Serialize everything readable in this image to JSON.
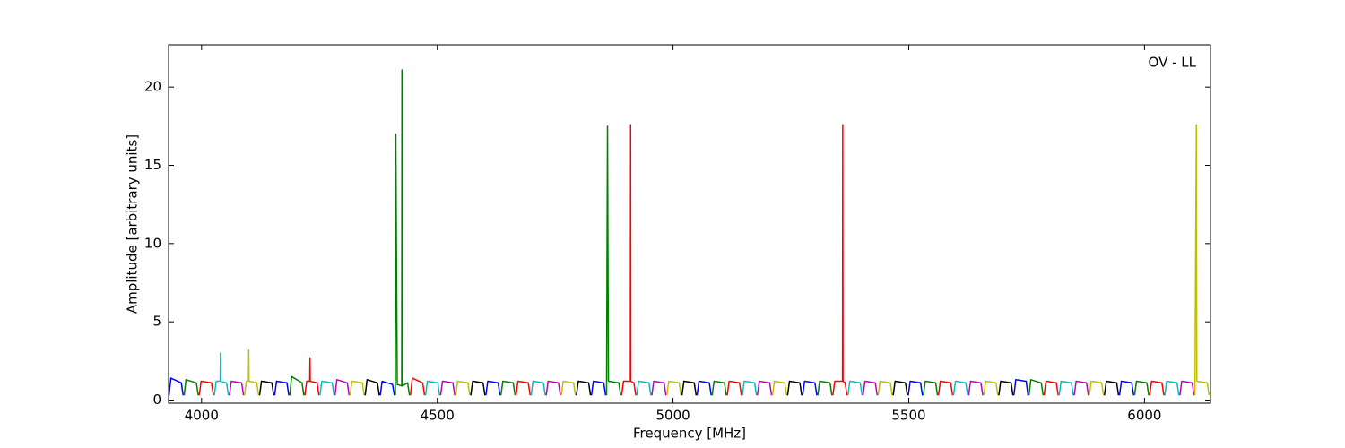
{
  "chart_data": {
    "type": "line",
    "annotation": "OV - LL",
    "xlabel": "Frequency [MHz]",
    "ylabel": "Amplitude [arbitrary units]",
    "xlim": [
      3930,
      6140
    ],
    "ylim": [
      -0.2,
      22.7
    ],
    "xticks": [
      4000,
      4500,
      5000,
      5500,
      6000
    ],
    "yticks": [
      0,
      5,
      10,
      15,
      20
    ],
    "grid": false,
    "series": [
      {
        "color": "#0000ff",
        "x": [
          3931,
          3935,
          3957,
          3961,
          3962,
          4155,
          4159,
          4181,
          4185,
          4186,
          4379,
          4383,
          4405,
          4409,
          4410,
          4603,
          4607,
          4629,
          4633,
          4634,
          4827,
          4831,
          4853,
          4857,
          4858,
          5051,
          5055,
          5077,
          5081,
          5082,
          5275,
          5279,
          5301,
          5305,
          5306,
          5499,
          5503,
          5525,
          5529,
          5530,
          5723,
          5727,
          5749,
          5753,
          5754,
          5947,
          5951,
          5973,
          5977
        ],
        "values": [
          0.3,
          1.4,
          1.1,
          0.3,
          null,
          0.3,
          1.2,
          1.1,
          0.3,
          null,
          0.3,
          1.2,
          1.0,
          0.3,
          null,
          0.3,
          1.2,
          1.1,
          0.3,
          null,
          0.3,
          1.2,
          1.1,
          0.3,
          null,
          0.3,
          1.2,
          1.1,
          0.3,
          null,
          0.3,
          1.2,
          1.1,
          0.3,
          null,
          0.3,
          1.2,
          1.1,
          0.3,
          null,
          0.3,
          1.3,
          1.2,
          0.3,
          null,
          0.3,
          1.2,
          1.1,
          0.3
        ]
      },
      {
        "color": "#008000",
        "x": [
          3963,
          3967,
          3989,
          3993,
          3994,
          4187,
          4191,
          4213,
          4217,
          4218,
          4411,
          4412,
          4415,
          4424.5,
          4425,
          4425.5,
          4437,
          4441,
          4442,
          4635,
          4639,
          4661,
          4665,
          4666,
          4859,
          4861,
          4863,
          4885,
          4889,
          4890,
          5083,
          5087,
          5109,
          5113,
          5114,
          5307,
          5311,
          5333,
          5337,
          5338,
          5531,
          5535,
          5557,
          5561,
          5562,
          5755,
          5759,
          5781,
          5785,
          5786,
          5979,
          5983,
          6005,
          6009
        ],
        "values": [
          0.3,
          1.3,
          1.1,
          0.3,
          null,
          0.3,
          1.5,
          1.1,
          0.3,
          null,
          0.3,
          17,
          1.0,
          0.9,
          21.1,
          0.9,
          1.1,
          0.3,
          null,
          0.3,
          1.2,
          1.1,
          0.3,
          null,
          0.3,
          17.5,
          1.2,
          1.1,
          0.3,
          null,
          0.3,
          1.2,
          1.1,
          0.3,
          null,
          0.3,
          1.2,
          1.1,
          0.3,
          null,
          0.3,
          1.2,
          1.1,
          0.3,
          null,
          0.3,
          1.3,
          1.1,
          0.3,
          null,
          0.3,
          1.2,
          1.1,
          0.3
        ]
      },
      {
        "color": "#ff0000",
        "x": [
          3995,
          3999,
          4021,
          4025,
          4026,
          4219,
          4223,
          4229.5,
          4230,
          4230.5,
          4245,
          4249,
          4250,
          4443,
          4447,
          4469,
          4473,
          4474,
          4667,
          4671,
          4693,
          4697,
          4698,
          4891,
          4895,
          4909.5,
          4910,
          4910.5,
          4917,
          4921,
          4922,
          5115,
          5119,
          5141,
          5145,
          5146,
          5339,
          5343,
          5359.5,
          5360,
          5360.5,
          5365,
          5369,
          5370,
          5563,
          5567,
          5589,
          5593,
          5594,
          5787,
          5791,
          5813,
          5817,
          5818,
          6011,
          6015,
          6037,
          6041
        ],
        "values": [
          0.3,
          1.2,
          1.1,
          0.3,
          null,
          0.3,
          1.2,
          1.2,
          2.7,
          1.2,
          1.1,
          0.3,
          null,
          0.3,
          1.4,
          1.1,
          0.3,
          null,
          0.3,
          1.2,
          1.1,
          0.3,
          null,
          0.3,
          1.2,
          1.2,
          17.6,
          1.2,
          1.1,
          0.3,
          null,
          0.3,
          1.2,
          1.1,
          0.3,
          null,
          0.3,
          1.2,
          1.2,
          17.6,
          1.2,
          1.1,
          0.3,
          null,
          0.3,
          1.2,
          1.1,
          0.3,
          null,
          0.3,
          1.2,
          1.1,
          0.3,
          null,
          0.3,
          1.2,
          1.1,
          0.3
        ]
      },
      {
        "color": "#00bfbf",
        "x": [
          4027,
          4031,
          4039.5,
          4040,
          4040.5,
          4053,
          4057,
          4058,
          4251,
          4255,
          4277,
          4281,
          4282,
          4475,
          4479,
          4501,
          4505,
          4506,
          4699,
          4703,
          4725,
          4729,
          4730,
          4923,
          4927,
          4949,
          4953,
          4954,
          5147,
          5151,
          5173,
          5177,
          5178,
          5371,
          5375,
          5397,
          5401,
          5402,
          5595,
          5599,
          5621,
          5625,
          5626,
          5819,
          5823,
          5845,
          5849,
          5850,
          6043,
          6047,
          6069,
          6073
        ],
        "values": [
          0.3,
          1.2,
          1.2,
          3.0,
          1.2,
          1.1,
          0.3,
          null,
          0.3,
          1.2,
          1.1,
          0.3,
          null,
          0.3,
          1.2,
          1.1,
          0.3,
          null,
          0.3,
          1.2,
          1.1,
          0.3,
          null,
          0.3,
          1.2,
          1.1,
          0.3,
          null,
          0.3,
          1.2,
          1.1,
          0.3,
          null,
          0.3,
          1.2,
          1.1,
          0.3,
          null,
          0.3,
          1.2,
          1.1,
          0.3,
          null,
          0.3,
          1.2,
          1.1,
          0.3,
          null,
          0.3,
          1.2,
          1.1,
          0.3
        ]
      },
      {
        "color": "#bf00bf",
        "x": [
          4059,
          4063,
          4085,
          4089,
          4090,
          4283,
          4287,
          4309,
          4313,
          4314,
          4507,
          4511,
          4533,
          4537,
          4538,
          4731,
          4735,
          4757,
          4761,
          4762,
          4955,
          4959,
          4981,
          4985,
          4986,
          5179,
          5183,
          5205,
          5209,
          5210,
          5403,
          5407,
          5429,
          5433,
          5434,
          5627,
          5631,
          5653,
          5657,
          5658,
          5851,
          5855,
          5877,
          5881,
          5882,
          6075,
          6079,
          6101,
          6105
        ],
        "values": [
          0.3,
          1.2,
          1.1,
          0.3,
          null,
          0.3,
          1.3,
          1.1,
          0.3,
          null,
          0.3,
          1.2,
          1.1,
          0.3,
          null,
          0.3,
          1.2,
          1.1,
          0.3,
          null,
          0.3,
          1.2,
          1.1,
          0.3,
          null,
          0.3,
          1.2,
          1.1,
          0.3,
          null,
          0.3,
          1.2,
          1.1,
          0.3,
          null,
          0.3,
          1.2,
          1.1,
          0.3,
          null,
          0.3,
          1.2,
          1.1,
          0.3,
          null,
          0.3,
          1.2,
          1.1,
          0.3
        ]
      },
      {
        "color": "#bfbf00",
        "x": [
          4091,
          4095,
          4099.5,
          4100,
          4100.5,
          4117,
          4121,
          4122,
          4315,
          4319,
          4341,
          4345,
          4346,
          4539,
          4543,
          4565,
          4569,
          4570,
          4763,
          4767,
          4789,
          4793,
          4794,
          4987,
          4991,
          5013,
          5017,
          5018,
          5211,
          5215,
          5237,
          5241,
          5242,
          5435,
          5439,
          5461,
          5465,
          5466,
          5659,
          5663,
          5685,
          5689,
          5690,
          5883,
          5887,
          5909,
          5913,
          5914,
          6107,
          6110,
          6111,
          6133,
          6137
        ],
        "values": [
          0.3,
          1.2,
          1.2,
          3.2,
          1.2,
          1.1,
          0.3,
          null,
          0.3,
          1.2,
          1.1,
          0.3,
          null,
          0.3,
          1.2,
          1.1,
          0.3,
          null,
          0.3,
          1.2,
          1.1,
          0.3,
          null,
          0.3,
          1.2,
          1.1,
          0.3,
          null,
          0.3,
          1.2,
          1.1,
          0.3,
          null,
          0.3,
          1.2,
          1.1,
          0.3,
          null,
          0.3,
          1.2,
          1.1,
          0.3,
          null,
          0.3,
          1.2,
          1.1,
          0.3,
          null,
          0.3,
          17.6,
          1.2,
          1.1,
          0.3
        ]
      },
      {
        "color": "#000000",
        "x": [
          4123,
          4127,
          4149,
          4153,
          4154,
          4347,
          4351,
          4373,
          4377,
          4378,
          4571,
          4575,
          4597,
          4601,
          4602,
          4795,
          4799,
          4821,
          4825,
          4826,
          5019,
          5023,
          5045,
          5049,
          5050,
          5243,
          5247,
          5269,
          5273,
          5274,
          5467,
          5471,
          5493,
          5497,
          5498,
          5691,
          5695,
          5717,
          5721,
          5722,
          5915,
          5919,
          5941,
          5945
        ],
        "values": [
          0.3,
          1.2,
          1.1,
          0.3,
          null,
          0.3,
          1.3,
          1.1,
          0.3,
          null,
          0.3,
          1.2,
          1.1,
          0.3,
          null,
          0.3,
          1.2,
          1.1,
          0.3,
          null,
          0.3,
          1.2,
          1.1,
          0.3,
          null,
          0.3,
          1.2,
          1.1,
          0.3,
          null,
          0.3,
          1.2,
          1.1,
          0.3,
          null,
          0.3,
          1.2,
          1.1,
          0.3,
          null,
          0.3,
          1.2,
          1.1,
          0.3
        ]
      }
    ]
  }
}
